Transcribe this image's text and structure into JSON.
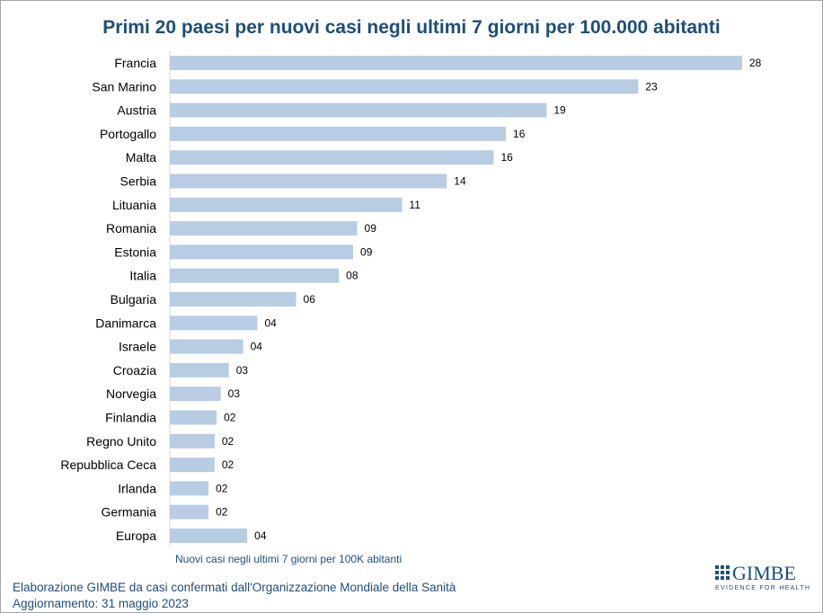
{
  "chart_data": {
    "type": "bar",
    "orientation": "horizontal",
    "title": "Primi 20 paesi per nuovi casi negli ultimi 7 giorni per 100.000 abitanti",
    "xlabel": "Nuovi casi negli ultimi 7 giorni per 100K abitanti",
    "ylabel": "",
    "categories": [
      "Francia",
      "San Marino",
      "Austria",
      "Portogallo",
      "Malta",
      "Serbia",
      "Lituania",
      "Romania",
      "Estonia",
      "Italia",
      "Bulgaria",
      "Danimarca",
      "Israele",
      "Croazia",
      "Norvegia",
      "Finlandia",
      "Regno Unito",
      "Repubblica Ceca",
      "Irlanda",
      "Germania",
      "Europa"
    ],
    "values": [
      28,
      23,
      19,
      16,
      16,
      14,
      11,
      9,
      9,
      8,
      6,
      4,
      4,
      3,
      3,
      2,
      2,
      2,
      2,
      2,
      4
    ],
    "bar_lengths_estimated": [
      28.1,
      23.0,
      18.5,
      16.5,
      15.9,
      13.6,
      11.4,
      9.2,
      9.0,
      8.3,
      6.2,
      4.3,
      3.6,
      2.9,
      2.5,
      2.3,
      2.2,
      2.2,
      1.9,
      1.9,
      3.8
    ],
    "value_labels": [
      "28",
      "23",
      "19",
      "16",
      "16",
      "14",
      "11",
      "09",
      "09",
      "08",
      "06",
      "04",
      "04",
      "03",
      "03",
      "02",
      "02",
      "02",
      "02",
      "02",
      "04"
    ],
    "xlim": [
      0,
      28.1
    ],
    "grid": false,
    "legend": "none",
    "bar_color": "#b8cce4"
  },
  "footer": {
    "line1": "Elaborazione GIMBE da casi confermati dall'Organizzazione Mondiale della Sanità",
    "line2": "Aggiornamento: 31 maggio 2023"
  },
  "logo": {
    "word": "GIMBE",
    "tagline": "EVIDENCE FOR HEALTH",
    "color": "#1f4e79"
  }
}
